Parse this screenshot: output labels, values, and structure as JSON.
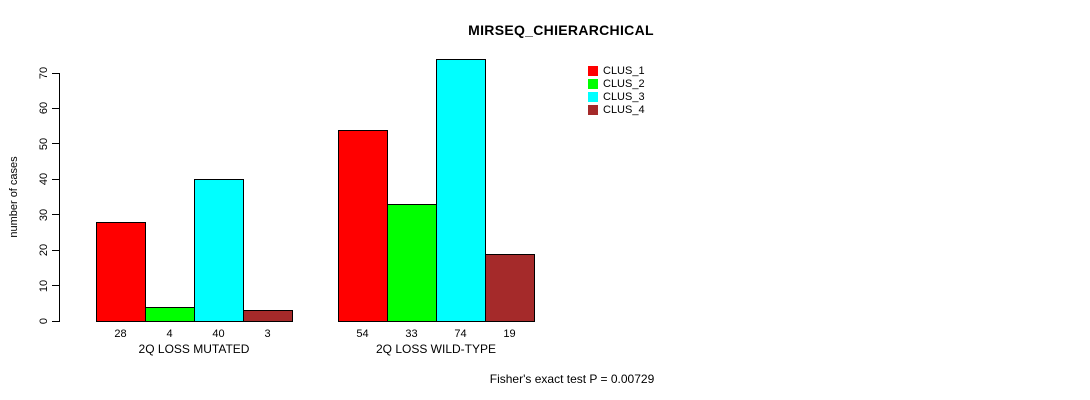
{
  "title": "MIRSEQ_CHIERARCHICAL",
  "ylabel": "number of cases",
  "annotation": "Fisher's exact test P = 0.00729",
  "chart_data": {
    "type": "bar",
    "title": "MIRSEQ_CHIERARCHICAL",
    "xlabel": "",
    "ylabel": "number of cases",
    "categories": [
      "2Q LOSS MUTATED",
      "2Q LOSS WILD-TYPE"
    ],
    "series": [
      {
        "name": "CLUS_1",
        "color": "#FF0000",
        "values": [
          28,
          54
        ]
      },
      {
        "name": "CLUS_2",
        "color": "#00FF00",
        "values": [
          4,
          33
        ]
      },
      {
        "name": "CLUS_3",
        "color": "#00FFFF",
        "values": [
          40,
          74
        ]
      },
      {
        "name": "CLUS_4",
        "color": "#A52A2A",
        "values": [
          3,
          19
        ]
      }
    ],
    "yticks": [
      0,
      10,
      20,
      30,
      40,
      50,
      60,
      70
    ],
    "ylim": [
      0,
      70
    ],
    "bar_value_labels_shown": true,
    "grid": false,
    "legend_position": "top-right",
    "annotation": "Fisher's exact test P = 0.00729"
  }
}
